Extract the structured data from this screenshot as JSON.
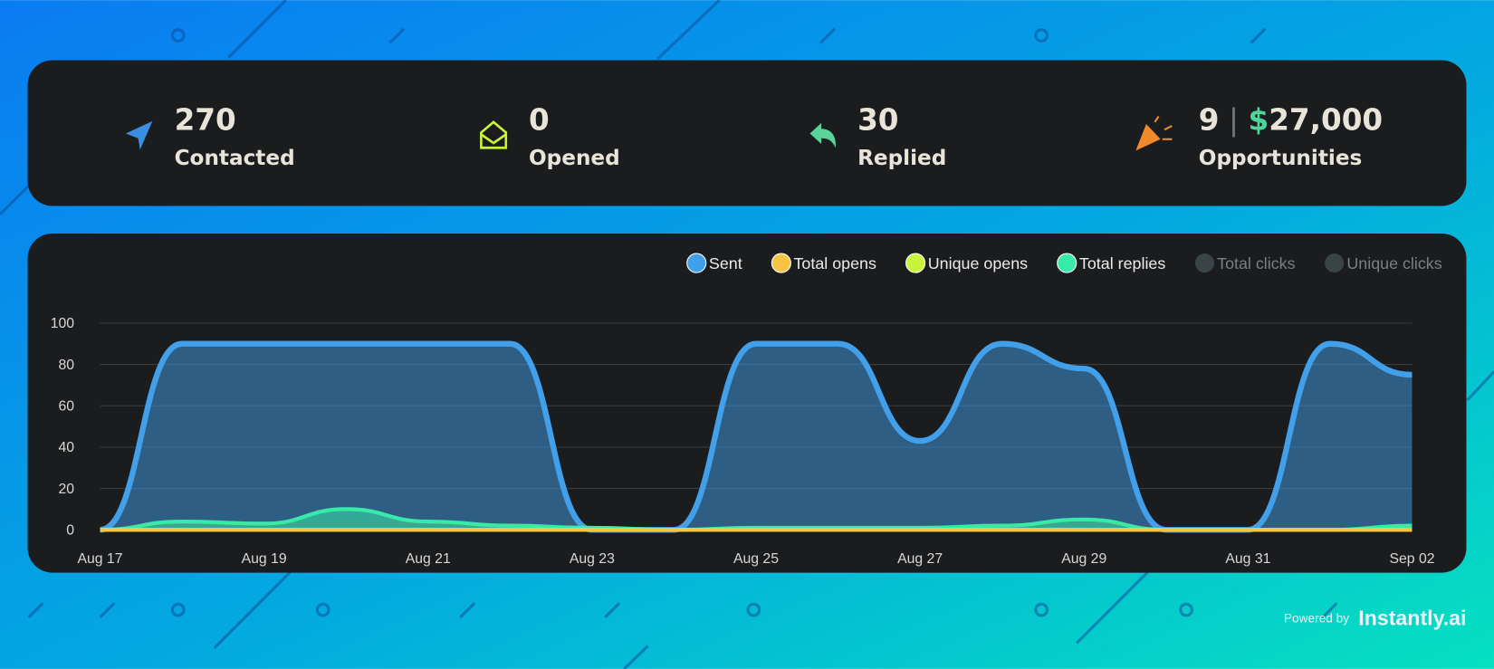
{
  "stats": [
    {
      "value": "270",
      "label": "Contacted"
    },
    {
      "value": "0",
      "label": "Opened"
    },
    {
      "value": "30",
      "label": "Replied"
    },
    {
      "value": "9",
      "currency": "$",
      "amount": "27,000",
      "label": "Opportunities"
    }
  ],
  "chart_data": {
    "type": "area",
    "categories": [
      "Aug 17",
      null,
      "Aug 19",
      null,
      "Aug 21",
      null,
      "Aug 23",
      null,
      "Aug 25",
      null,
      "Aug 27",
      null,
      "Aug 29",
      null,
      "Aug 31",
      null,
      "Sep 02"
    ],
    "series": [
      {
        "name": "Sent",
        "color": "#42a0ea",
        "values": [
          0,
          90,
          90,
          90,
          90,
          90,
          0,
          0,
          90,
          90,
          43,
          90,
          78,
          0,
          0,
          90,
          75
        ]
      },
      {
        "name": "Total opens",
        "color": "#f6c343",
        "values": [
          0,
          0,
          0,
          0,
          0,
          0,
          0,
          0,
          0,
          0,
          0,
          0,
          0,
          0,
          0,
          0,
          0
        ]
      },
      {
        "name": "Unique opens",
        "color": "#c8f43c",
        "values": [
          0,
          0,
          0,
          0,
          0,
          0,
          0,
          0,
          0,
          0,
          0,
          0,
          0,
          0,
          0,
          0,
          0
        ]
      },
      {
        "name": "Total replies",
        "color": "#38eaa8",
        "values": [
          0,
          4,
          3,
          10,
          4,
          2,
          1,
          0,
          1,
          1,
          1,
          2,
          5,
          0,
          0,
          0,
          2
        ]
      },
      {
        "name": "Total clicks",
        "color": "#3a4447",
        "hidden": true
      },
      {
        "name": "Unique clicks",
        "color": "#3a4447",
        "hidden": true
      }
    ],
    "ylim": [
      0,
      100
    ],
    "yticks": [
      0,
      20,
      40,
      60,
      80,
      100
    ],
    "grid": true
  },
  "footer": {
    "powered": "Powered by",
    "brand": "Instantly.ai"
  }
}
